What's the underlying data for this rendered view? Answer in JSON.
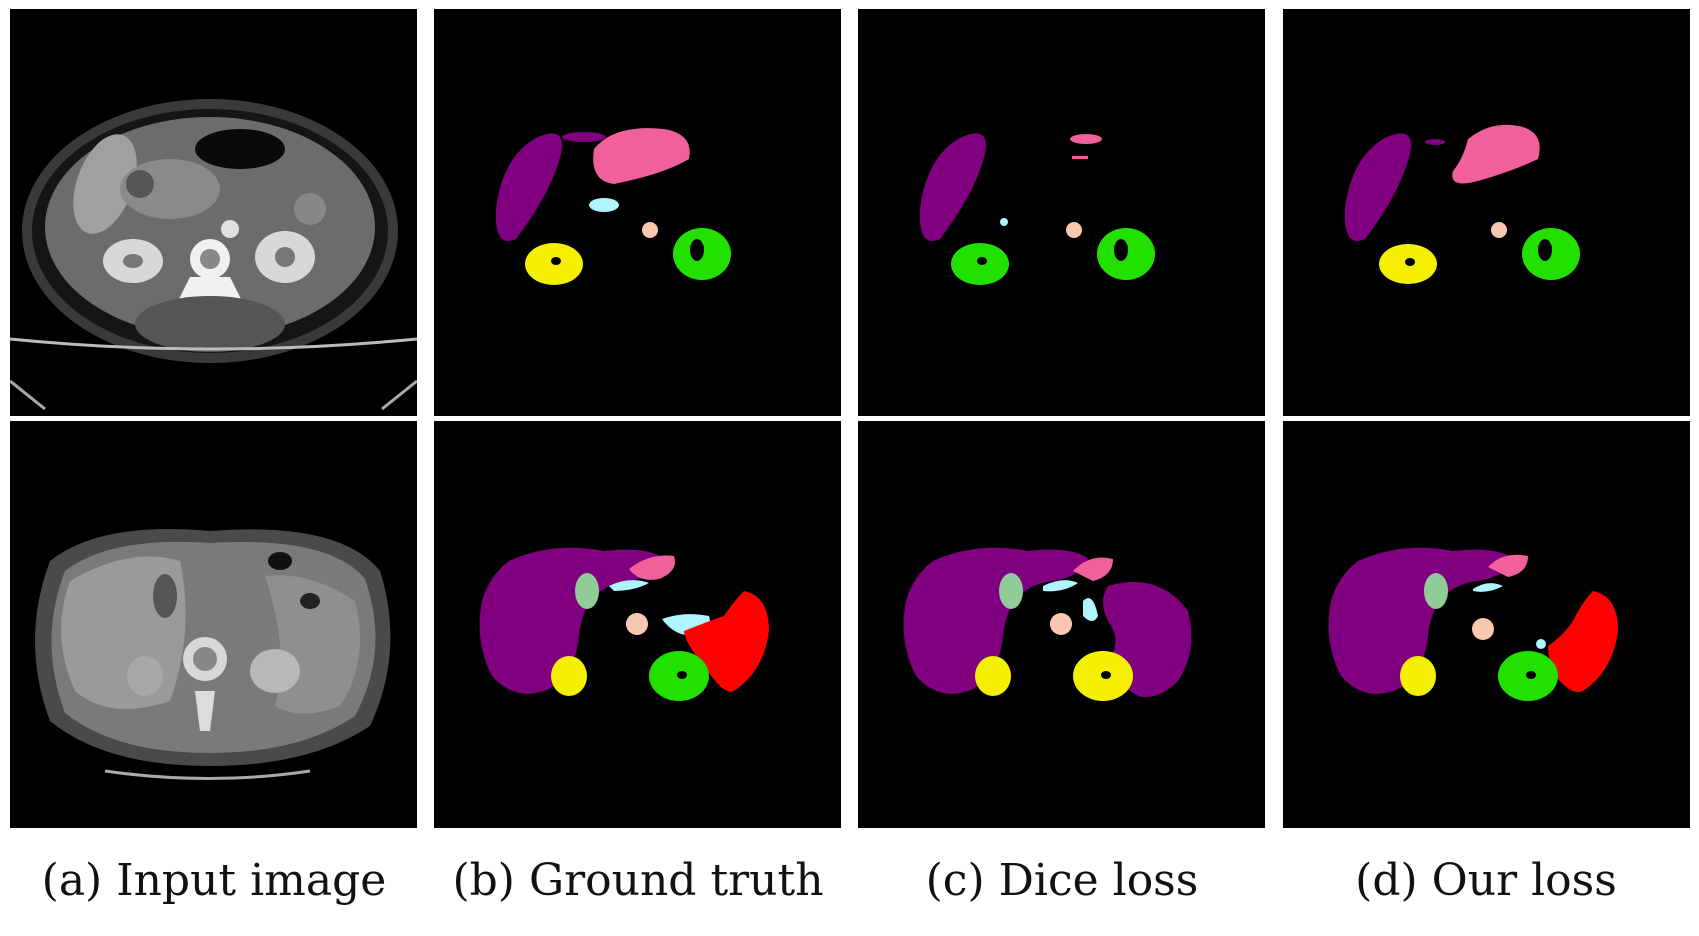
{
  "figure": {
    "captions": [
      "(a) Input image",
      "(b) Ground truth",
      "(c) Dice loss",
      "(d) Our loss"
    ],
    "rows": 2,
    "columns": 4
  },
  "colors": {
    "background": "#000000",
    "liver": "#800080",
    "stomach": "#f0609a",
    "pancreas": "#b0f4ff",
    "aorta": "#f8c8b0",
    "left-kidney": "#22e000",
    "right-kidney": "#f5f000",
    "gallbladder": "#90cc98",
    "spleen": "#ff0000"
  }
}
